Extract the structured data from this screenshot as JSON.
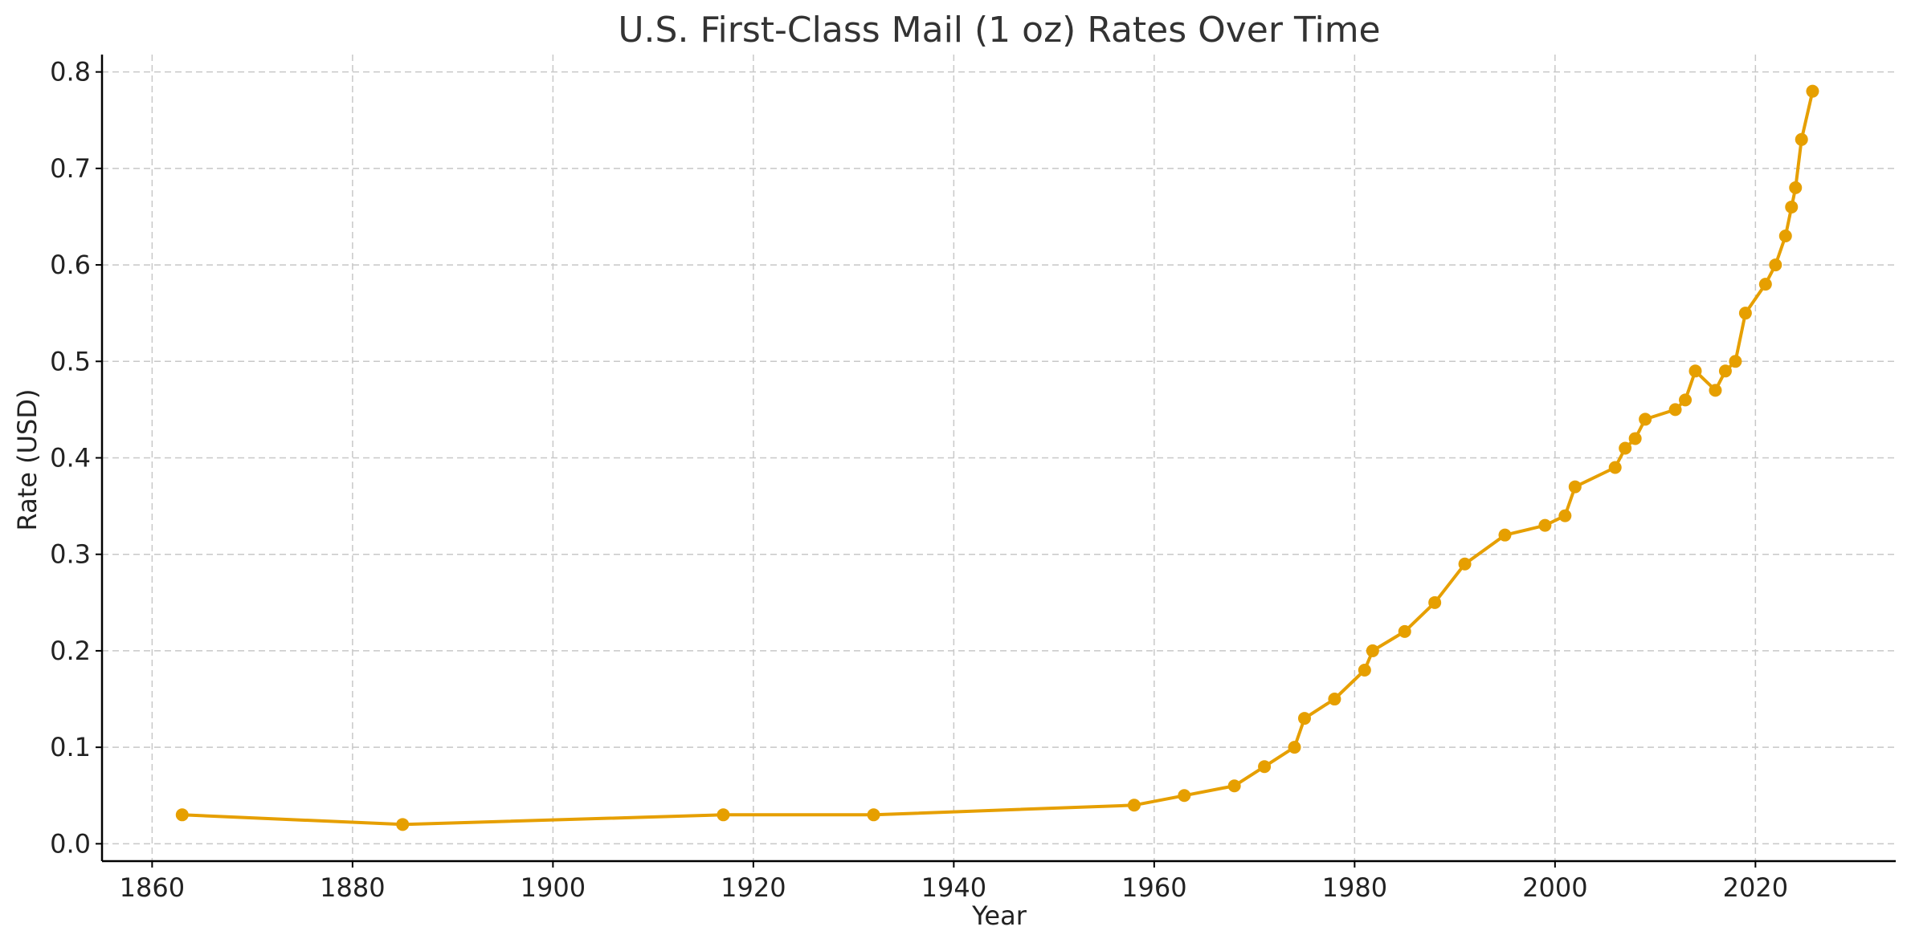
{
  "chart_data": {
    "type": "line",
    "title": "U.S. First-Class Mail (1 oz) Rates Over Time",
    "xlabel": "Year",
    "ylabel": "Rate (USD)",
    "xlim": [
      1855,
      2034
    ],
    "ylim": [
      -0.018,
      0.818
    ],
    "xticks": [
      1860,
      1880,
      1900,
      1920,
      1940,
      1960,
      1980,
      2000,
      2020
    ],
    "yticks": [
      0.0,
      0.1,
      0.2,
      0.3,
      0.4,
      0.5,
      0.6,
      0.7,
      0.8
    ],
    "ytick_labels": [
      "0.0",
      "0.1",
      "0.2",
      "0.3",
      "0.4",
      "0.5",
      "0.6",
      "0.7",
      "0.8"
    ],
    "grid": true,
    "color": "#E69F00",
    "series": [
      {
        "x": [
          1863,
          1885,
          1917,
          1932,
          1958,
          1963,
          1968,
          1971,
          1974,
          1975,
          1978,
          1981,
          1981.8,
          1985,
          1988,
          1991,
          1995,
          1999,
          2001,
          2002,
          2006,
          2007,
          2008,
          2009,
          2012,
          2013,
          2014,
          2016,
          2017,
          2018,
          2019,
          2021,
          2022,
          2023,
          2023.6,
          2024,
          2024.6,
          2025.7
        ],
        "y": [
          0.03,
          0.02,
          0.03,
          0.03,
          0.04,
          0.05,
          0.06,
          0.08,
          0.1,
          0.13,
          0.15,
          0.18,
          0.2,
          0.22,
          0.25,
          0.29,
          0.32,
          0.33,
          0.34,
          0.37,
          0.39,
          0.41,
          0.42,
          0.44,
          0.45,
          0.46,
          0.49,
          0.47,
          0.49,
          0.5,
          0.55,
          0.58,
          0.6,
          0.63,
          0.66,
          0.68,
          0.73,
          0.78
        ]
      }
    ]
  }
}
